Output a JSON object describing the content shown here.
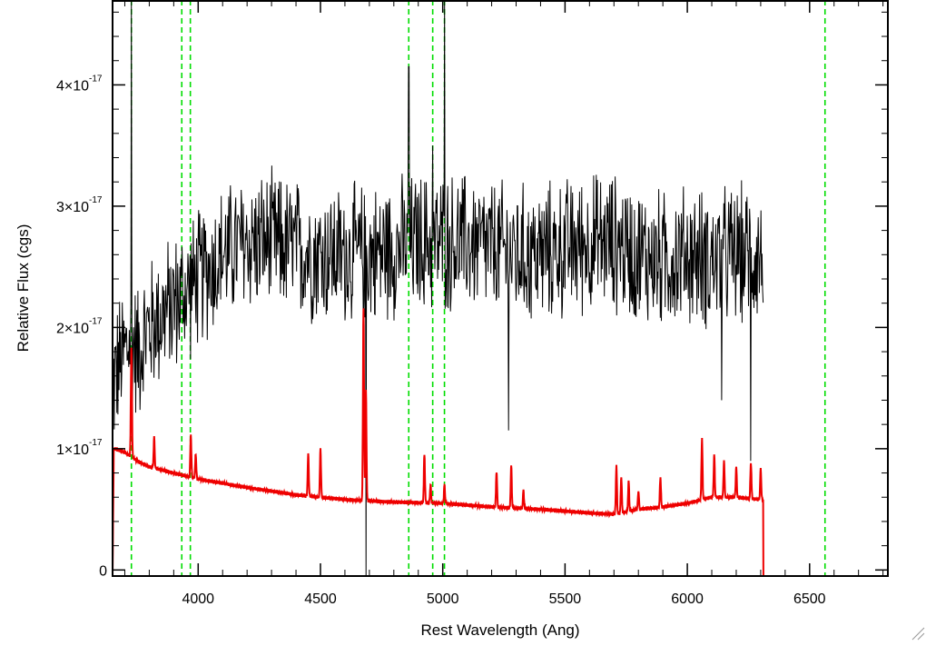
{
  "chart_data": {
    "type": "line",
    "title": "",
    "xlabel": "Rest Wavelength (Ang)",
    "ylabel": "Relative Flux (cgs)",
    "xlim": [
      3650,
      6820
    ],
    "ylim": [
      -5e-19,
      4.7e-17
    ],
    "grid": false,
    "legend": "none",
    "x_ticks": [
      4000,
      4500,
      5000,
      5500,
      6000,
      6500
    ],
    "x_tick_labels": [
      "4000",
      "4500",
      "5000",
      "5500",
      "6000",
      "6500"
    ],
    "y_ticks": [
      {
        "value": 0,
        "mantissa": "0",
        "exponent": ""
      },
      {
        "value": 1e-17,
        "mantissa": "1×10",
        "exponent": "-17"
      },
      {
        "value": 2e-17,
        "mantissa": "2×10",
        "exponent": "-17"
      },
      {
        "value": 3e-17,
        "mantissa": "3×10",
        "exponent": "-17"
      },
      {
        "value": 4e-17,
        "mantissa": "4×10",
        "exponent": "-17"
      }
    ],
    "vertical_markers": {
      "color": "#00dd00",
      "style": "dashed",
      "x": [
        3727,
        3933,
        3968,
        4861,
        4959,
        5007,
        6563
      ]
    },
    "series": [
      {
        "color": "#000000",
        "noise_amplitude": 5.5e-18,
        "x": [
          3650,
          3660,
          3680,
          3700,
          3727,
          3750,
          3800,
          3850,
          3900,
          3950,
          4000,
          4100,
          4200,
          4300,
          4400,
          4500,
          4600,
          4700,
          4800,
          4900,
          5000,
          5100,
          5200,
          5300,
          5400,
          5500,
          5600,
          5700,
          5800,
          5900,
          6000,
          6100,
          6200,
          6310
        ],
        "y": [
          1.5e-17,
          1.6e-17,
          1.7e-17,
          1.8e-17,
          1.9e-17,
          1.8e-17,
          2e-17,
          2.1e-17,
          2.2e-17,
          2.3e-17,
          2.4e-17,
          2.6e-17,
          2.7e-17,
          2.7e-17,
          2.65e-17,
          2.6e-17,
          2.6e-17,
          2.6e-17,
          2.65e-17,
          2.7e-17,
          2.7e-17,
          2.7e-17,
          2.65e-17,
          2.6e-17,
          2.6e-17,
          2.65e-17,
          2.7e-17,
          2.7e-17,
          2.6e-17,
          2.55e-17,
          2.6e-17,
          2.55e-17,
          2.6e-17,
          2.6e-17
        ],
        "spikes": [
          {
            "x": 3727,
            "y": 4.7e-17
          },
          {
            "x": 4686,
            "y": -5e-19
          },
          {
            "x": 4861,
            "y": 4.15e-17
          },
          {
            "x": 4959,
            "y": 3.5e-17
          },
          {
            "x": 5007,
            "y": 4.7e-17
          },
          {
            "x": 5270,
            "y": 1.15e-17
          },
          {
            "x": 6140,
            "y": 1.4e-17
          },
          {
            "x": 6260,
            "y": 9e-18
          }
        ]
      },
      {
        "color": "#ee0000",
        "x": [
          3650,
          3655,
          3660,
          3700,
          3750,
          3800,
          3900,
          4000,
          4200,
          4400,
          4600,
          4800,
          5000,
          5200,
          5400,
          5600,
          5700,
          5800,
          5900,
          6000,
          6100,
          6200,
          6300,
          6310,
          6311,
          6820
        ],
        "y": [
          -5e-19,
          1e-17,
          1e-17,
          9.7e-18,
          9e-18,
          8.5e-18,
          8e-18,
          7.5e-18,
          6.8e-18,
          6.2e-18,
          5.8e-18,
          5.6e-18,
          5.5e-18,
          5.2e-18,
          5e-18,
          4.7e-18,
          4.6e-18,
          5e-18,
          5.2e-18,
          5.5e-18,
          6e-18,
          6e-18,
          5.8e-18,
          5.8e-18,
          -5e-19,
          -5e-19
        ],
        "emission_lines": [
          {
            "x": 3727,
            "height": 9e-18
          },
          {
            "x": 3820,
            "height": 2.5e-18
          },
          {
            "x": 3970,
            "height": 3.5e-18
          },
          {
            "x": 3990,
            "height": 2e-18
          },
          {
            "x": 4450,
            "height": 3.5e-18
          },
          {
            "x": 4500,
            "height": 4e-18
          },
          {
            "x": 4676,
            "height": 1.6e-17
          },
          {
            "x": 4686,
            "height": 9e-18
          },
          {
            "x": 4925,
            "height": 4e-18
          },
          {
            "x": 4950,
            "height": 1.5e-18
          },
          {
            "x": 5007,
            "height": 1.5e-18
          },
          {
            "x": 5220,
            "height": 3e-18
          },
          {
            "x": 5280,
            "height": 3.5e-18
          },
          {
            "x": 5330,
            "height": 1.5e-18
          },
          {
            "x": 5710,
            "height": 4e-18
          },
          {
            "x": 5730,
            "height": 3e-18
          },
          {
            "x": 5760,
            "height": 2.5e-18
          },
          {
            "x": 5800,
            "height": 1.5e-18
          },
          {
            "x": 5890,
            "height": 2.5e-18
          },
          {
            "x": 6060,
            "height": 5e-18
          },
          {
            "x": 6110,
            "height": 3.5e-18
          },
          {
            "x": 6150,
            "height": 3e-18
          },
          {
            "x": 6200,
            "height": 2.5e-18
          },
          {
            "x": 6260,
            "height": 3e-18
          },
          {
            "x": 6300,
            "height": 2.5e-18
          }
        ]
      }
    ]
  }
}
